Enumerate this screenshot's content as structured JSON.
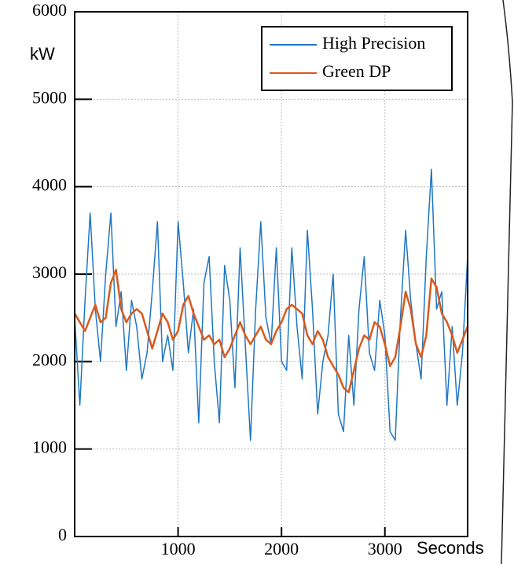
{
  "chart_data": {
    "type": "line",
    "y_label": "kW",
    "x_label": "Seconds",
    "x": [
      0,
      50,
      100,
      150,
      200,
      250,
      300,
      350,
      400,
      450,
      500,
      550,
      600,
      650,
      700,
      750,
      800,
      850,
      900,
      950,
      1000,
      1050,
      1100,
      1150,
      1200,
      1250,
      1300,
      1350,
      1400,
      1450,
      1500,
      1550,
      1600,
      1650,
      1700,
      1750,
      1800,
      1850,
      1900,
      1950,
      2000,
      2050,
      2100,
      2150,
      2200,
      2250,
      2300,
      2350,
      2400,
      2450,
      2500,
      2550,
      2600,
      2650,
      2700,
      2750,
      2800,
      2850,
      2900,
      2950,
      3000,
      3050,
      3100,
      3150,
      3200,
      3250,
      3300,
      3350,
      3400,
      3450,
      3500,
      3550,
      3600,
      3650,
      3700,
      3750,
      3800
    ],
    "series": [
      {
        "name": "High Precision",
        "color": "#1f77c4",
        "values": [
          2500,
          1500,
          2700,
          3700,
          2600,
          2000,
          3000,
          3700,
          2400,
          2800,
          1900,
          2700,
          2400,
          1800,
          2100,
          2800,
          3600,
          2000,
          2300,
          1900,
          3600,
          2900,
          2100,
          2600,
          1300,
          2900,
          3200,
          2000,
          1300,
          3100,
          2700,
          1700,
          3300,
          2200,
          1100,
          2600,
          3600,
          2500,
          2200,
          3300,
          2000,
          1900,
          3300,
          2400,
          1800,
          3500,
          2600,
          1400,
          2000,
          2300,
          3000,
          1400,
          1200,
          2300,
          1500,
          2600,
          3200,
          2100,
          1900,
          2700,
          2300,
          1200,
          1100,
          2500,
          3500,
          2700,
          2200,
          1800,
          3200,
          4200,
          2600,
          2800,
          1500,
          2400,
          1500,
          2100,
          3200
        ]
      },
      {
        "name": "Green DP",
        "color": "#d95a1e",
        "values": [
          2550,
          2450,
          2350,
          2500,
          2650,
          2450,
          2500,
          2900,
          3050,
          2600,
          2450,
          2550,
          2600,
          2550,
          2350,
          2150,
          2350,
          2550,
          2450,
          2250,
          2350,
          2650,
          2750,
          2550,
          2400,
          2250,
          2300,
          2200,
          2250,
          2050,
          2150,
          2300,
          2450,
          2300,
          2200,
          2300,
          2400,
          2250,
          2200,
          2350,
          2450,
          2600,
          2650,
          2600,
          2550,
          2300,
          2200,
          2350,
          2250,
          2050,
          1950,
          1850,
          1700,
          1650,
          1900,
          2150,
          2300,
          2250,
          2450,
          2400,
          2200,
          1950,
          2050,
          2400,
          2800,
          2600,
          2200,
          2050,
          2300,
          2950,
          2850,
          2550,
          2450,
          2300,
          2100,
          2250,
          2400
        ]
      }
    ],
    "xlim": [
      0,
      3800
    ],
    "ylim": [
      0,
      6000
    ],
    "xticks": [
      1000,
      2000,
      3000
    ],
    "yticks": [
      0,
      1000,
      2000,
      3000,
      4000,
      5000,
      6000
    ],
    "grid": true,
    "legend": "upper right"
  }
}
